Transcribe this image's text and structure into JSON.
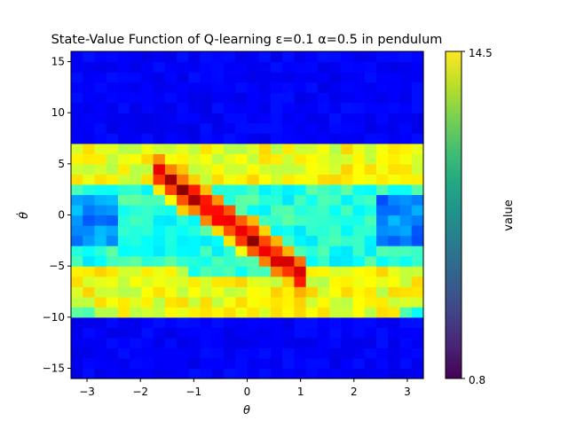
{
  "chart_data": {
    "type": "heatmap",
    "title": "State-Value Function of Q-learning ε=0.1 α=0.5 in pendulum",
    "xlabel": "θ",
    "ylabel": "θ̇",
    "xlim": [
      -3.3,
      3.3
    ],
    "ylim": [
      -16,
      16
    ],
    "x_ticks": [
      -3,
      -2,
      -1,
      0,
      1,
      2,
      3
    ],
    "x_tick_labels": [
      "−3",
      "−2",
      "−1",
      "0",
      "1",
      "2",
      "3"
    ],
    "y_ticks": [
      -15,
      -10,
      -5,
      0,
      5,
      10,
      15
    ],
    "y_tick_labels": [
      "−15",
      "−10",
      "−5",
      "0",
      "5",
      "10",
      "15"
    ],
    "colorbar": {
      "label": "value",
      "min": 0.8,
      "max": 14.5,
      "min_label": "0.8",
      "max_label": "14.5",
      "colormap": "jet"
    },
    "value_range": [
      0.8,
      14.5
    ],
    "pattern": {
      "description_type": "diagonal-band",
      "high_diagonal_from": [
        -1.2,
        2.5
      ],
      "high_diagonal_to": [
        0.8,
        -5
      ],
      "active_theta_dot_range": [
        -10,
        6.5
      ]
    }
  }
}
